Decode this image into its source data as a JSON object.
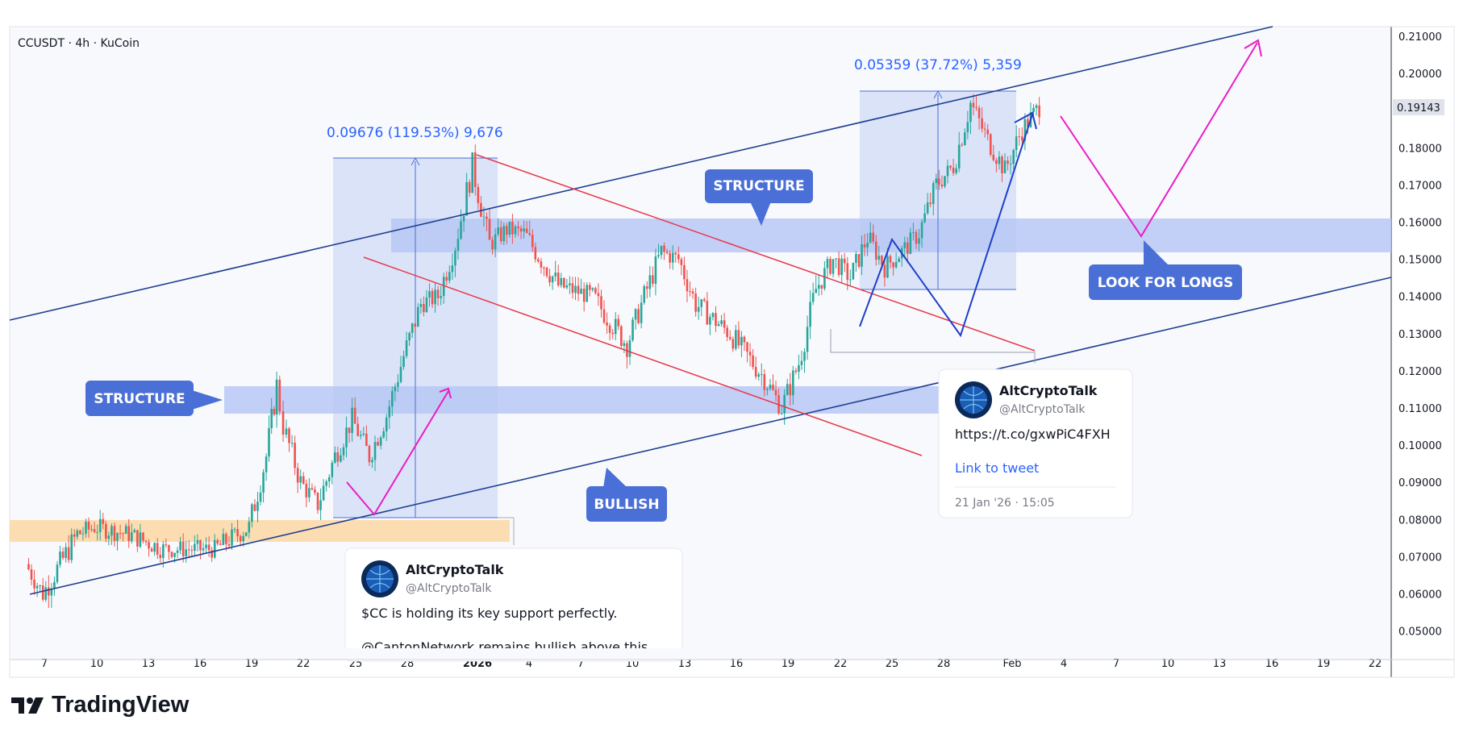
{
  "symbol_info": "CCUSDT · 4h · KuCoin",
  "price_axis": {
    "ticks": [
      "0.21000",
      "0.20000",
      "0.19000",
      "0.18000",
      "0.17000",
      "0.16000",
      "0.15000",
      "0.14000",
      "0.13000",
      "0.12000",
      "0.11000",
      "0.10000",
      "0.09000",
      "0.08000",
      "0.07000",
      "0.06000",
      "0.05000"
    ],
    "current_price": "0.19143"
  },
  "time_axis": {
    "ticks": [
      "7",
      "10",
      "13",
      "16",
      "19",
      "22",
      "25",
      "28",
      "2026",
      "4",
      "7",
      "10",
      "13",
      "16",
      "19",
      "22",
      "25",
      "28",
      "Feb",
      "4",
      "7",
      "10",
      "13",
      "16",
      "19",
      "22"
    ]
  },
  "measure_labels": {
    "first": "0.09676 (119.53%) 9,676",
    "second": "0.05359 (37.72%) 5,359"
  },
  "callouts": {
    "structure_left": "STRUCTURE",
    "structure_top": "STRUCTURE",
    "bullish": "BULLISH",
    "look_for_longs": "LOOK FOR LONGS"
  },
  "tweet1": {
    "name": "AltCryptoTalk",
    "handle": "@AltCryptoTalk",
    "text_line1": "$CC is holding its key support perfectly.",
    "text_line2": "@CantonNetwork remains bullish above this"
  },
  "tweet2": {
    "name": "AltCryptoTalk",
    "handle": "@AltCryptoTalk",
    "url": "https://t.co/gxwPiC4FXH",
    "link_label": "Link to tweet",
    "date": "21 Jan '26 · 15:05"
  },
  "brand": {
    "name": "TradingView"
  },
  "colors": {
    "up": "#26a69a",
    "down": "#ef5350",
    "callout": "#4a6fd6",
    "channel": "#1e3f8f",
    "red_line": "#e5394a",
    "magenta": "#e91ec4",
    "zone": "#b8c8f5",
    "support_zone": "#fcd9a8"
  },
  "chart_data": {
    "type": "candlestick",
    "title": "",
    "timeframe": "4h",
    "x_range": [
      "2025-12-06",
      "2026-02-22"
    ],
    "ylim": [
      0.045,
      0.212
    ],
    "price_path": [
      {
        "date": "2025-12-06",
        "price": 0.068
      },
      {
        "date": "2025-12-07",
        "price": 0.06
      },
      {
        "date": "2025-12-09",
        "price": 0.076
      },
      {
        "date": "2025-12-10",
        "price": 0.078
      },
      {
        "date": "2025-12-12",
        "price": 0.076
      },
      {
        "date": "2025-12-14",
        "price": 0.072
      },
      {
        "date": "2025-12-17",
        "price": 0.072
      },
      {
        "date": "2025-12-19",
        "price": 0.078
      },
      {
        "date": "2025-12-20",
        "price": 0.097
      },
      {
        "date": "2025-12-20.6",
        "price": 0.116
      },
      {
        "date": "2025-12-21",
        "price": 0.105
      },
      {
        "date": "2025-12-22",
        "price": 0.09
      },
      {
        "date": "2025-12-23",
        "price": 0.084
      },
      {
        "date": "2025-12-24",
        "price": 0.097
      },
      {
        "date": "2025-12-25",
        "price": 0.107
      },
      {
        "date": "2025-12-26",
        "price": 0.097
      },
      {
        "date": "2025-12-27",
        "price": 0.108
      },
      {
        "date": "2025-12-28",
        "price": 0.124
      },
      {
        "date": "2025-12-29",
        "price": 0.138
      },
      {
        "date": "2025-12-30",
        "price": 0.14
      },
      {
        "date": "2025-12-31",
        "price": 0.154
      },
      {
        "date": "2026-01-01",
        "price": 0.175
      },
      {
        "date": "2026-01-02",
        "price": 0.154
      },
      {
        "date": "2026-01-03",
        "price": 0.158
      },
      {
        "date": "2026-01-04",
        "price": 0.157
      },
      {
        "date": "2026-01-06",
        "price": 0.143
      },
      {
        "date": "2026-01-08",
        "price": 0.14
      },
      {
        "date": "2026-01-10",
        "price": 0.127
      },
      {
        "date": "2026-01-11",
        "price": 0.14
      },
      {
        "date": "2026-01-12",
        "price": 0.152
      },
      {
        "date": "2026-01-13",
        "price": 0.15
      },
      {
        "date": "2026-01-14",
        "price": 0.138
      },
      {
        "date": "2026-01-16",
        "price": 0.13
      },
      {
        "date": "2026-01-18",
        "price": 0.118
      },
      {
        "date": "2026-01-19",
        "price": 0.11
      },
      {
        "date": "2026-01-20",
        "price": 0.122
      },
      {
        "date": "2026-01-21",
        "price": 0.142
      },
      {
        "date": "2026-01-22",
        "price": 0.15
      },
      {
        "date": "2026-01-23",
        "price": 0.145
      },
      {
        "date": "2026-01-24",
        "price": 0.156
      },
      {
        "date": "2026-01-25",
        "price": 0.148
      },
      {
        "date": "2026-01-26",
        "price": 0.152
      },
      {
        "date": "2026-01-27",
        "price": 0.157
      },
      {
        "date": "2026-01-28",
        "price": 0.17
      },
      {
        "date": "2026-01-29",
        "price": 0.175
      },
      {
        "date": "2026-01-30",
        "price": 0.192
      },
      {
        "date": "2026-01-31",
        "price": 0.182
      },
      {
        "date": "2026-02-01",
        "price": 0.174
      },
      {
        "date": "2026-02-02",
        "price": 0.185
      },
      {
        "date": "2026-02-03",
        "price": 0.191
      }
    ],
    "zones": [
      {
        "name": "structure-upper",
        "from": 0.1525,
        "to": 0.1615
      },
      {
        "name": "structure-lower",
        "from": 0.1085,
        "to": 0.116
      },
      {
        "name": "support",
        "from": 0.0742,
        "to": 0.08
      }
    ],
    "annotations": [
      "STRUCTURE",
      "STRUCTURE",
      "BULLISH",
      "LOOK FOR LONGS"
    ]
  }
}
